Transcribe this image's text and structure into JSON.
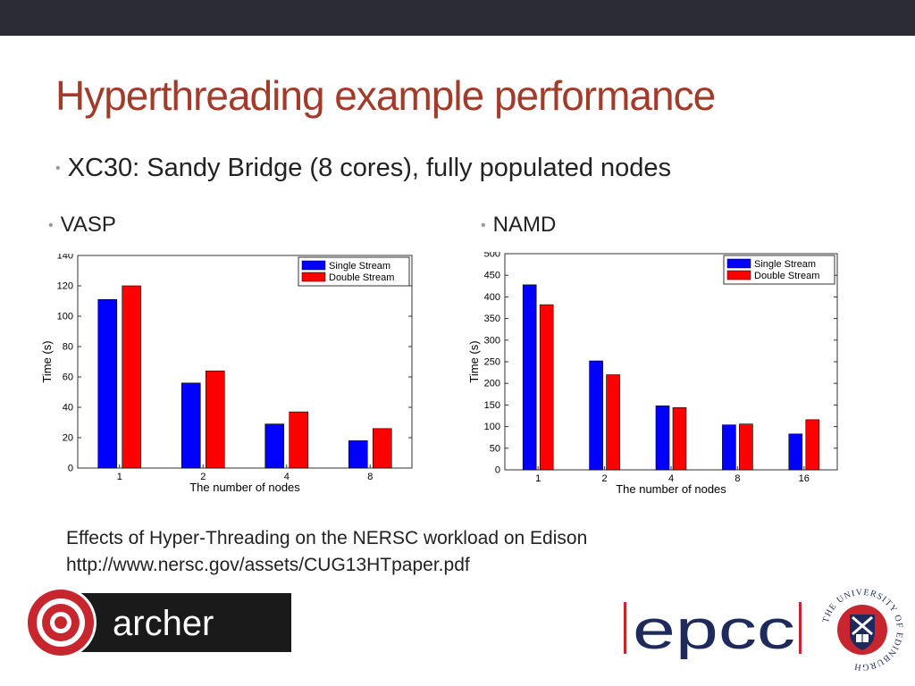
{
  "slide": {
    "title": "Hyperthreading example performance",
    "bullet": "XC30: Sandy Bridge (8 cores), fully populated nodes",
    "left_label": "VASP",
    "right_label": "NAMD",
    "caption_line1": "Effects of Hyper-Threading on the NERSC workload on Edison",
    "caption_line2": "http://www.nersc.gov/assets/CUG13HTpaper.pdf",
    "logos": {
      "archer": "archer",
      "epcc": "epcc",
      "university": "THE UNIVERSITY OF EDINBURGH"
    }
  },
  "colors": {
    "title": "#a33b2a",
    "topbar": "#2b2c36",
    "single": "#0000ff",
    "double": "#ff0000",
    "archer_red": "#c8262f",
    "epcc_red": "#c8262f",
    "uoe_navy": "#1f2a5c"
  },
  "chart_data": [
    {
      "type": "bar",
      "categories": [
        "1",
        "2",
        "4",
        "8"
      ],
      "series": [
        {
          "name": "Single Stream",
          "values": [
            111,
            56,
            29,
            18
          ]
        },
        {
          "name": "Double Stream",
          "values": [
            120,
            64,
            37,
            26
          ]
        }
      ],
      "xlabel": "The number of nodes",
      "ylabel": "Time (s)",
      "ylim": [
        0,
        140
      ],
      "yticks": [
        0,
        20,
        40,
        60,
        80,
        100,
        120,
        140
      ],
      "legend": "top-right"
    },
    {
      "type": "bar",
      "categories": [
        "1",
        "2",
        "4",
        "8",
        "16"
      ],
      "series": [
        {
          "name": "Single Stream",
          "values": [
            428,
            252,
            148,
            104,
            83
          ]
        },
        {
          "name": "Double Stream",
          "values": [
            382,
            220,
            144,
            106,
            116
          ]
        }
      ],
      "xlabel": "The number of nodes",
      "ylabel": "Time (s)",
      "ylim": [
        0,
        500
      ],
      "yticks": [
        0,
        50,
        100,
        150,
        200,
        250,
        300,
        350,
        400,
        450,
        500
      ],
      "legend": "top-right"
    }
  ]
}
